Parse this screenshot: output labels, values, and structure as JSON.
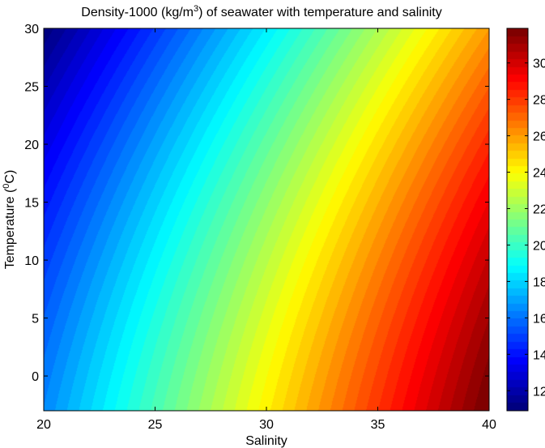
{
  "chart_data": {
    "type": "heatmap",
    "title": "Density-1000 (kg/m³) of seawater with temperature and salinity",
    "xlabel": "Salinity",
    "ylabel": "Temperature (°C)",
    "xlim": [
      20,
      40
    ],
    "ylim": [
      -3,
      30
    ],
    "x_ticks": [
      20,
      25,
      30,
      35,
      40
    ],
    "y_ticks": [
      0,
      5,
      10,
      15,
      20,
      25,
      30
    ],
    "colorbar": {
      "range": [
        10.9,
        31.9
      ],
      "ticks": [
        12,
        14,
        16,
        18,
        20,
        22,
        24,
        26,
        28,
        30
      ],
      "colormap": "jet"
    },
    "corner_values": {
      "S20_T-3": 16.4,
      "S40_T-3": 32.0,
      "S20_T30": 11.0,
      "S40_T30": 26.0
    },
    "contour_levels": 50,
    "grid": false
  }
}
